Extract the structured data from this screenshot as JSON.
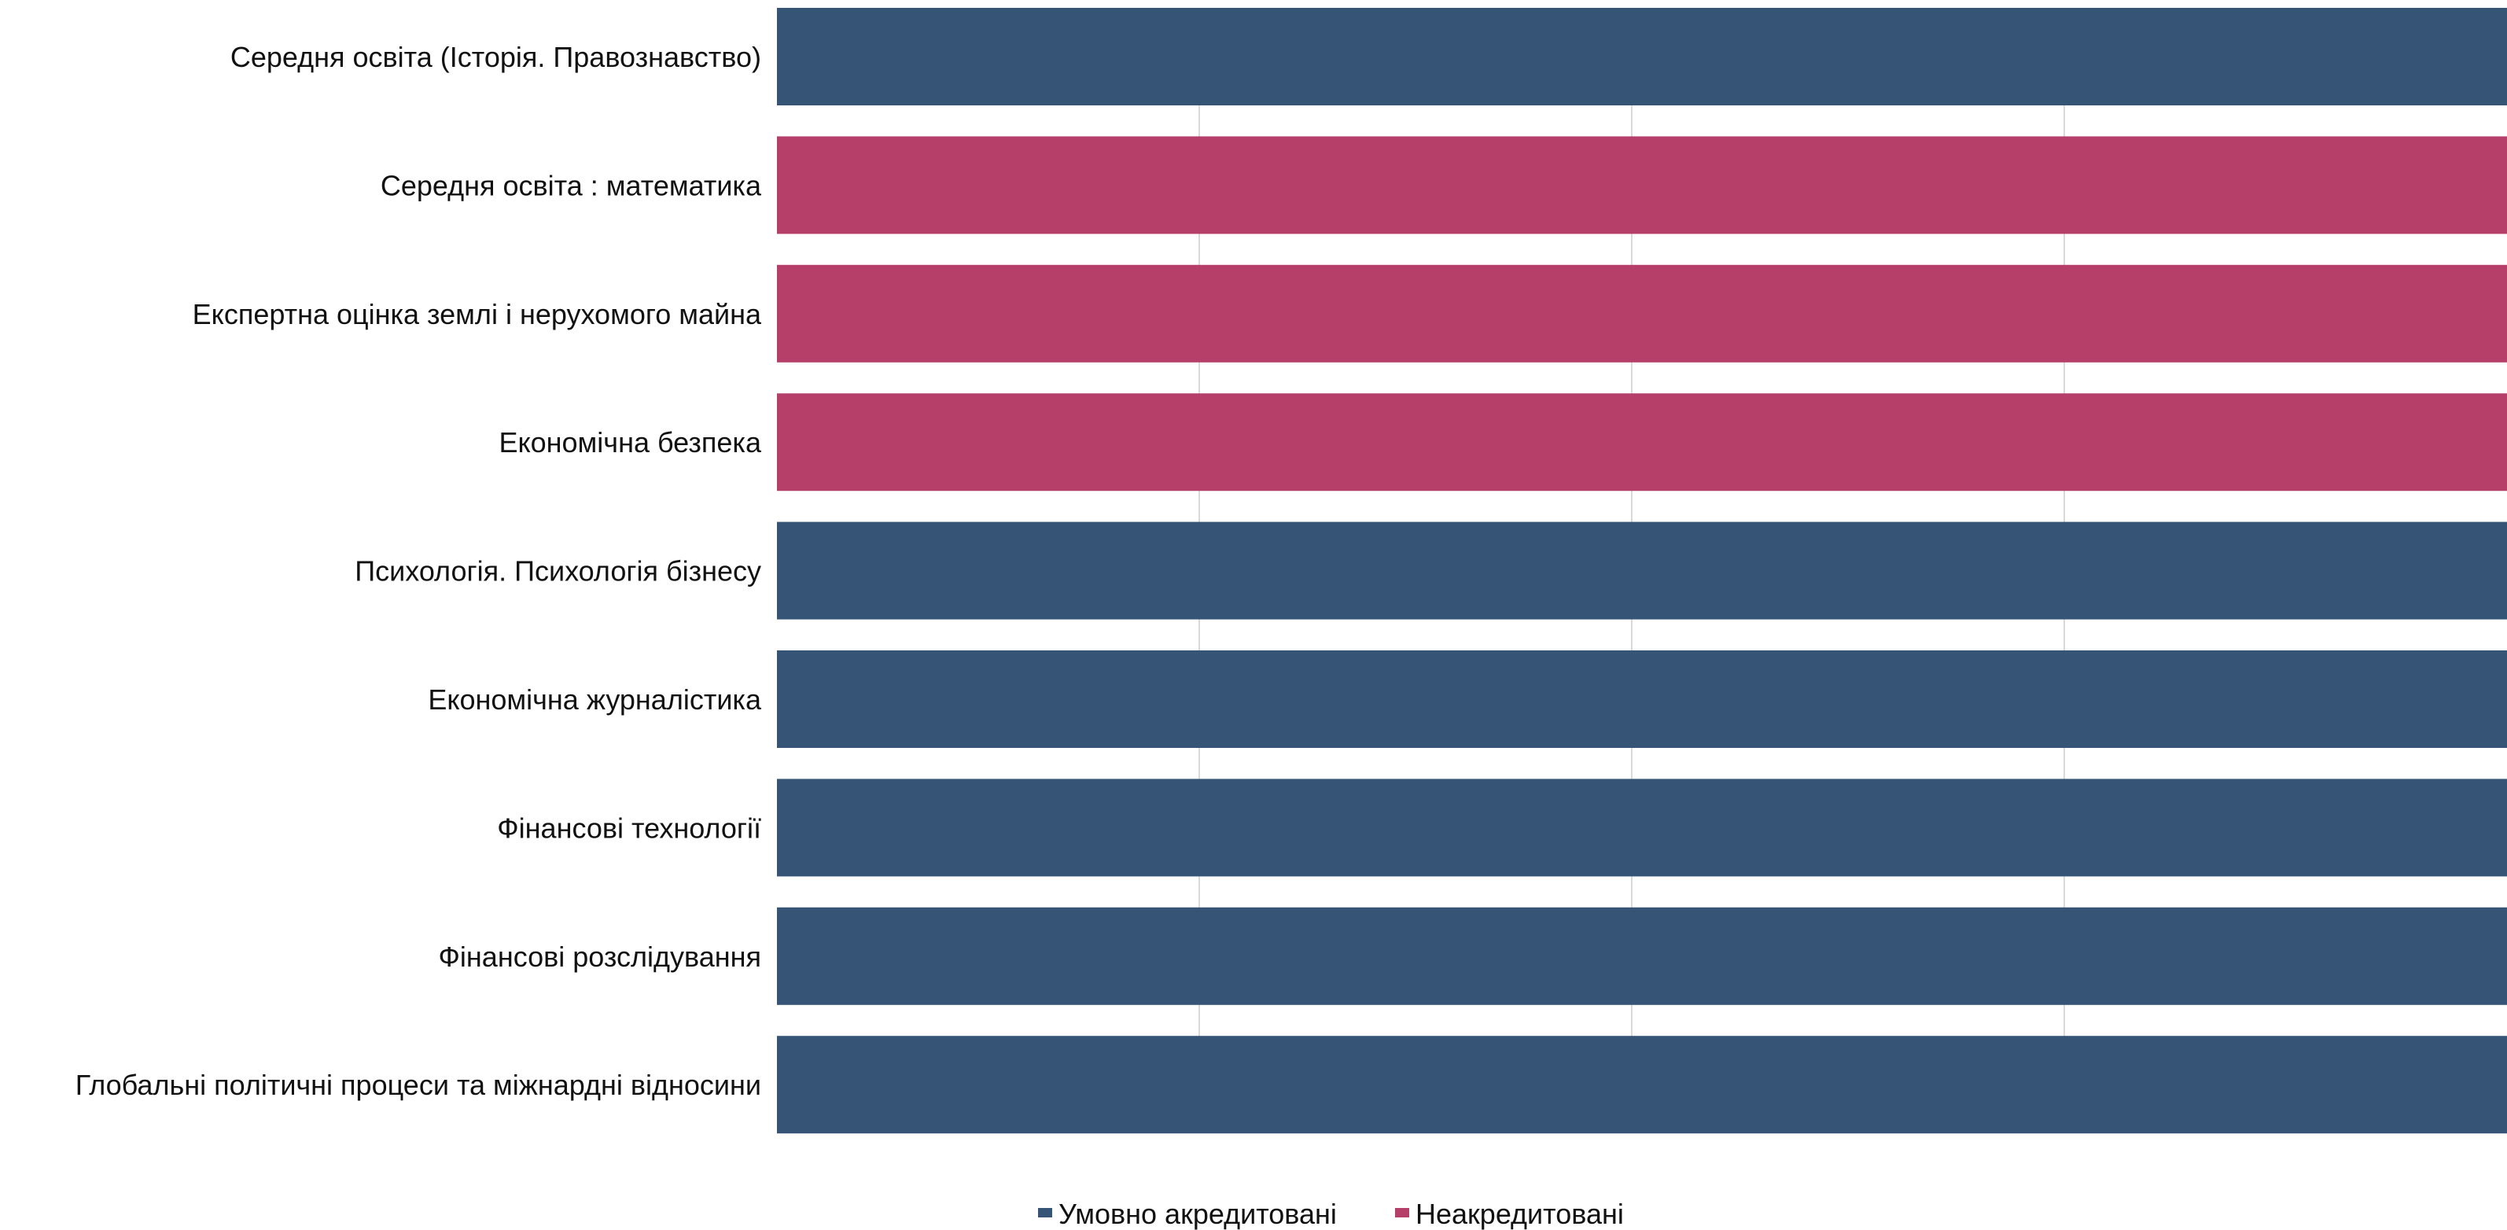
{
  "chart_data": {
    "type": "bar",
    "orientation": "horizontal",
    "categories": [
      "Середня освіта (Історія. Правознавство)",
      "Середня освіта : математика",
      "Експертна оцінка землі і нерухомого майна",
      "Економічна безпека",
      "Психологія. Психологія бізнесу",
      "Економічна журналістика",
      "Фінансові технології",
      "Фінансові розслідування",
      "Глобальні політичні процеси та міжнарднi відносини"
    ],
    "values": [
      1,
      1,
      1,
      1,
      1,
      1,
      1,
      1,
      1
    ],
    "series_index": [
      0,
      1,
      1,
      1,
      0,
      0,
      0,
      0,
      0
    ],
    "legend": [
      {
        "label": "Умовно акредитовані",
        "color": "#365475"
      },
      {
        "label": "Неакредитовані",
        "color": "#b53f69"
      }
    ],
    "xlim": [
      0,
      1
    ],
    "grid": "vertical",
    "legend_position": "bottom"
  }
}
